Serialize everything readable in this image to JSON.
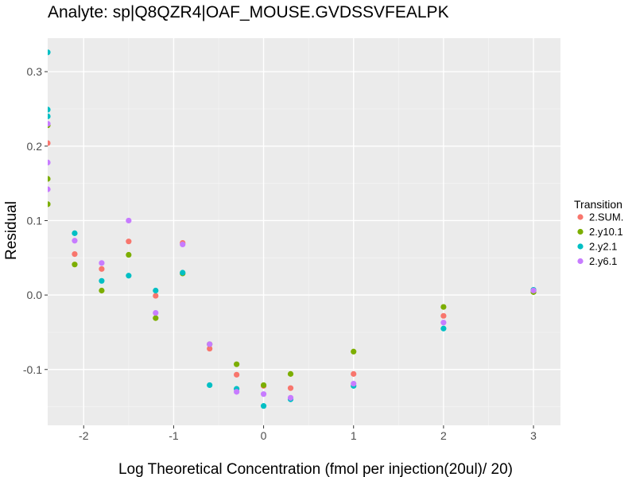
{
  "chart_data": {
    "type": "scatter",
    "title": "Analyte: sp|Q8QZR4|OAF_MOUSE.GVDSSVFEALPK",
    "xlabel": "Log Theoretical Concentration (fmol per injection(20ul)/ 20)",
    "ylabel": "Residual",
    "xlim": [
      -2.4,
      3.3
    ],
    "ylim": [
      -0.175,
      0.345
    ],
    "x_ticks": [
      -2,
      -1,
      0,
      1,
      2,
      3
    ],
    "x_tick_labels": [
      "-2",
      "-1",
      "0",
      "1",
      "2",
      "3"
    ],
    "y_ticks": [
      -0.1,
      0.0,
      0.1,
      0.2,
      0.3
    ],
    "y_tick_labels": [
      "-0.1",
      "0.0",
      "0.1",
      "0.2",
      "0.3"
    ],
    "grid": true,
    "legend": {
      "title": "Transition",
      "position": "right"
    },
    "series": [
      {
        "name": "2.SUM.",
        "color": "#F8766D",
        "x": [
          -2.4,
          -2.1,
          -1.8,
          -1.5,
          -1.2,
          -0.9,
          -0.6,
          -0.3,
          0,
          0.3,
          1,
          2,
          3
        ],
        "y": [
          0.204,
          0.055,
          0.035,
          0.072,
          -0.001,
          0.07,
          -0.072,
          -0.107,
          -0.122,
          -0.125,
          -0.106,
          -0.028,
          0.006
        ]
      },
      {
        "name": "2.y10.1",
        "color": "#7CAE00",
        "x": [
          -2.4,
          -2.4,
          -2.4,
          -2.1,
          -1.8,
          -1.5,
          -1.2,
          -0.9,
          -0.6,
          -0.3,
          0,
          0.3,
          1,
          2,
          3
        ],
        "y": [
          0.228,
          0.156,
          0.122,
          0.041,
          0.006,
          0.054,
          -0.031,
          0.029,
          -0.066,
          -0.093,
          -0.121,
          -0.106,
          -0.076,
          -0.016,
          0.004
        ]
      },
      {
        "name": "2.y2.1",
        "color": "#00BFC4",
        "x": [
          -2.4,
          -2.4,
          -2.4,
          -2.1,
          -1.8,
          -1.5,
          -1.2,
          -0.9,
          -0.6,
          -0.3,
          0,
          0.3,
          1,
          2,
          3
        ],
        "y": [
          0.326,
          0.249,
          0.24,
          0.083,
          0.019,
          0.026,
          0.006,
          0.03,
          -0.121,
          -0.126,
          -0.149,
          -0.14,
          -0.122,
          -0.045,
          0.007
        ]
      },
      {
        "name": "2.y6.1",
        "color": "#C77CFF",
        "x": [
          -2.4,
          -2.4,
          -2.4,
          -2.1,
          -1.8,
          -1.5,
          -1.2,
          -0.9,
          -0.6,
          -0.3,
          0,
          0.3,
          1,
          2,
          3
        ],
        "y": [
          0.23,
          0.178,
          0.142,
          0.073,
          0.043,
          0.1,
          -0.024,
          0.068,
          -0.066,
          -0.13,
          -0.133,
          -0.138,
          -0.119,
          -0.037,
          0.006
        ]
      }
    ]
  }
}
